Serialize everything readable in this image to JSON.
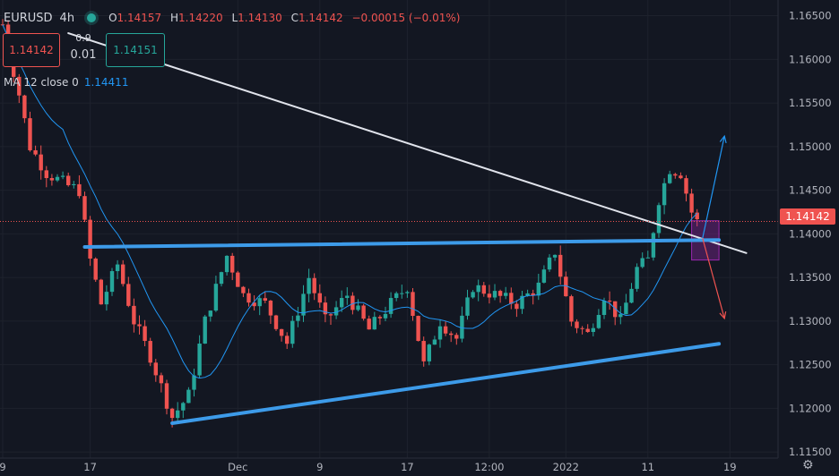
{
  "header": {
    "symbol": "EURUSD",
    "timeframe": "4h",
    "open_label": "O",
    "open": "1.14157",
    "high_label": "H",
    "high": "1.14220",
    "low_label": "L",
    "low": "1.14130",
    "close_label": "C",
    "close": "1.14142",
    "change": "−0.00015 (−0.01%)"
  },
  "order": {
    "bid": "1.14142",
    "ask": "1.14151",
    "spread_top": "0.9",
    "spread_value": "0.01"
  },
  "indicator": {
    "label": "MA 12 close 0",
    "value": "1.14411"
  },
  "current_price": "1.14142",
  "colors": {
    "up": "#26a69a",
    "down": "#ef5350",
    "ma": "#2196f3",
    "trend": "#3d9be9",
    "diag": "#e0e3eb",
    "bg": "#131722"
  },
  "chart_data": {
    "type": "candlestick",
    "ylim": [
      1.1143,
      1.1668
    ],
    "y_ticks": [
      1.165,
      1.16,
      1.155,
      1.15,
      1.145,
      1.14,
      1.135,
      1.13,
      1.125,
      1.12,
      1.115
    ],
    "y_tick_labels": [
      "1.16500",
      "1.16000",
      "1.15500",
      "1.15000",
      "1.14500",
      "1.14000",
      "1.13500",
      "1.13000",
      "1.12500",
      "1.12000",
      "1.11500"
    ],
    "x_tick_labels": [
      "9",
      "17",
      "Dec",
      "9",
      "17",
      "12:00",
      "2022",
      "11",
      "19"
    ],
    "x_tick_index": [
      0,
      16,
      43,
      58,
      74,
      89,
      103,
      118,
      133
    ],
    "bar_count": 136,
    "key_points": [
      {
        "bar": 0,
        "price": 1.164
      },
      {
        "bar": 3,
        "price": 1.156
      },
      {
        "bar": 5,
        "price": 1.15
      },
      {
        "bar": 8,
        "price": 1.147
      },
      {
        "bar": 12,
        "price": 1.1455
      },
      {
        "bar": 14,
        "price": 1.145
      },
      {
        "bar": 16,
        "price": 1.137
      },
      {
        "bar": 18,
        "price": 1.132
      },
      {
        "bar": 21,
        "price": 1.1365
      },
      {
        "bar": 24,
        "price": 1.13
      },
      {
        "bar": 27,
        "price": 1.126
      },
      {
        "bar": 31,
        "price": 1.119
      },
      {
        "bar": 34,
        "price": 1.1215
      },
      {
        "bar": 37,
        "price": 1.13
      },
      {
        "bar": 41,
        "price": 1.1375
      },
      {
        "bar": 44,
        "price": 1.133
      },
      {
        "bar": 48,
        "price": 1.132
      },
      {
        "bar": 52,
        "price": 1.1275
      },
      {
        "bar": 56,
        "price": 1.135
      },
      {
        "bar": 59,
        "price": 1.13
      },
      {
        "bar": 63,
        "price": 1.133
      },
      {
        "bar": 67,
        "price": 1.129
      },
      {
        "bar": 71,
        "price": 1.132
      },
      {
        "bar": 74,
        "price": 1.134
      },
      {
        "bar": 77,
        "price": 1.125
      },
      {
        "bar": 80,
        "price": 1.13
      },
      {
        "bar": 83,
        "price": 1.128
      },
      {
        "bar": 86,
        "price": 1.134
      },
      {
        "bar": 90,
        "price": 1.133
      },
      {
        "bar": 94,
        "price": 1.132
      },
      {
        "bar": 98,
        "price": 1.134
      },
      {
        "bar": 101,
        "price": 1.138
      },
      {
        "bar": 104,
        "price": 1.13
      },
      {
        "bar": 107,
        "price": 1.1285
      },
      {
        "bar": 110,
        "price": 1.133
      },
      {
        "bar": 113,
        "price": 1.13
      },
      {
        "bar": 116,
        "price": 1.136
      },
      {
        "bar": 118,
        "price": 1.137
      },
      {
        "bar": 120,
        "price": 1.144
      },
      {
        "bar": 122,
        "price": 1.1475
      },
      {
        "bar": 124,
        "price": 1.147
      },
      {
        "bar": 126,
        "price": 1.1425
      },
      {
        "bar": 127,
        "price": 1.1414
      }
    ],
    "drawings": {
      "diag_line": [
        {
          "bar": 12,
          "price": 1.163
        },
        {
          "bar": 136,
          "price": 1.1378
        }
      ],
      "upper_trend": [
        {
          "bar": 15,
          "price": 1.1385
        },
        {
          "bar": 131,
          "price": 1.1393
        }
      ],
      "lower_trend": [
        {
          "bar": 31,
          "price": 1.1183
        },
        {
          "bar": 131,
          "price": 1.1274
        }
      ],
      "rect": [
        {
          "bar": 126,
          "price": 1.1415
        },
        {
          "bar": 131,
          "price": 1.137
        }
      ],
      "arrow_up": [
        {
          "bar": 128,
          "price": 1.1395
        },
        {
          "bar": 132,
          "price": 1.1512
        }
      ],
      "arrow_down": [
        {
          "bar": 128,
          "price": 1.1395
        },
        {
          "bar": 132,
          "price": 1.1303
        }
      ]
    }
  }
}
